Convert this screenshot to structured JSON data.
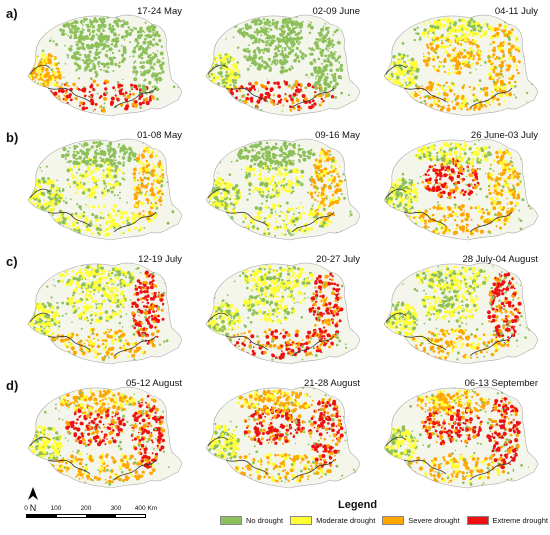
{
  "rows": [
    {
      "label": "a)",
      "panels": [
        "17-24 May",
        "02-09 June",
        "04-11 July"
      ],
      "levels": [
        {
          "south": 3,
          "west": 2,
          "center": 0,
          "east": 0,
          "north": 0
        },
        {
          "south": 3,
          "west": 1,
          "center": 0,
          "east": 0,
          "north": 0
        },
        {
          "south": 2,
          "west": 1,
          "center": 2,
          "east": 2,
          "north": 1
        }
      ]
    },
    {
      "label": "b)",
      "panels": [
        "01-08 May",
        "09-16 May",
        "26 June-03 July"
      ],
      "levels": [
        {
          "south": 1,
          "west": 1,
          "center": 1,
          "east": 2,
          "north": 0
        },
        {
          "south": 1,
          "west": 1,
          "center": 1,
          "east": 2,
          "north": 0
        },
        {
          "south": 2,
          "west": 1,
          "center": 3,
          "east": 2,
          "north": 1
        }
      ]
    },
    {
      "label": "c)",
      "panels": [
        "12-19 July",
        "20-27 July",
        "28 July-04 August"
      ],
      "levels": [
        {
          "south": 2,
          "west": 1,
          "center": 1,
          "east": 3,
          "north": 1
        },
        {
          "south": 3,
          "west": 1,
          "center": 1,
          "east": 3,
          "north": 1
        },
        {
          "south": 2,
          "west": 1,
          "center": 1,
          "east": 3,
          "north": 1
        }
      ]
    },
    {
      "label": "d)",
      "panels": [
        "05-12 August",
        "21-28 August",
        "06-13 September"
      ],
      "levels": [
        {
          "south": 2,
          "west": 1,
          "center": 3,
          "east": 3,
          "north": 2
        },
        {
          "south": 2,
          "west": 1,
          "center": 3,
          "east": 3,
          "north": 2
        },
        {
          "south": 2,
          "west": 1,
          "center": 3,
          "east": 3,
          "north": 2
        }
      ]
    }
  ],
  "north_arrow": "N",
  "scale_bar": {
    "ticks": [
      "0",
      "100",
      "200",
      "300",
      "400 Km"
    ],
    "values": [
      0,
      100,
      200,
      300,
      400
    ]
  },
  "legend": {
    "title": "Legend",
    "items": [
      {
        "label": "No drought",
        "color": "#8dc05a"
      },
      {
        "label": "Moderate drought",
        "color": "#ffff33"
      },
      {
        "label": "Severe drought",
        "color": "#ffa500"
      },
      {
        "label": "Extreme drought",
        "color": "#ee1111"
      }
    ]
  }
}
